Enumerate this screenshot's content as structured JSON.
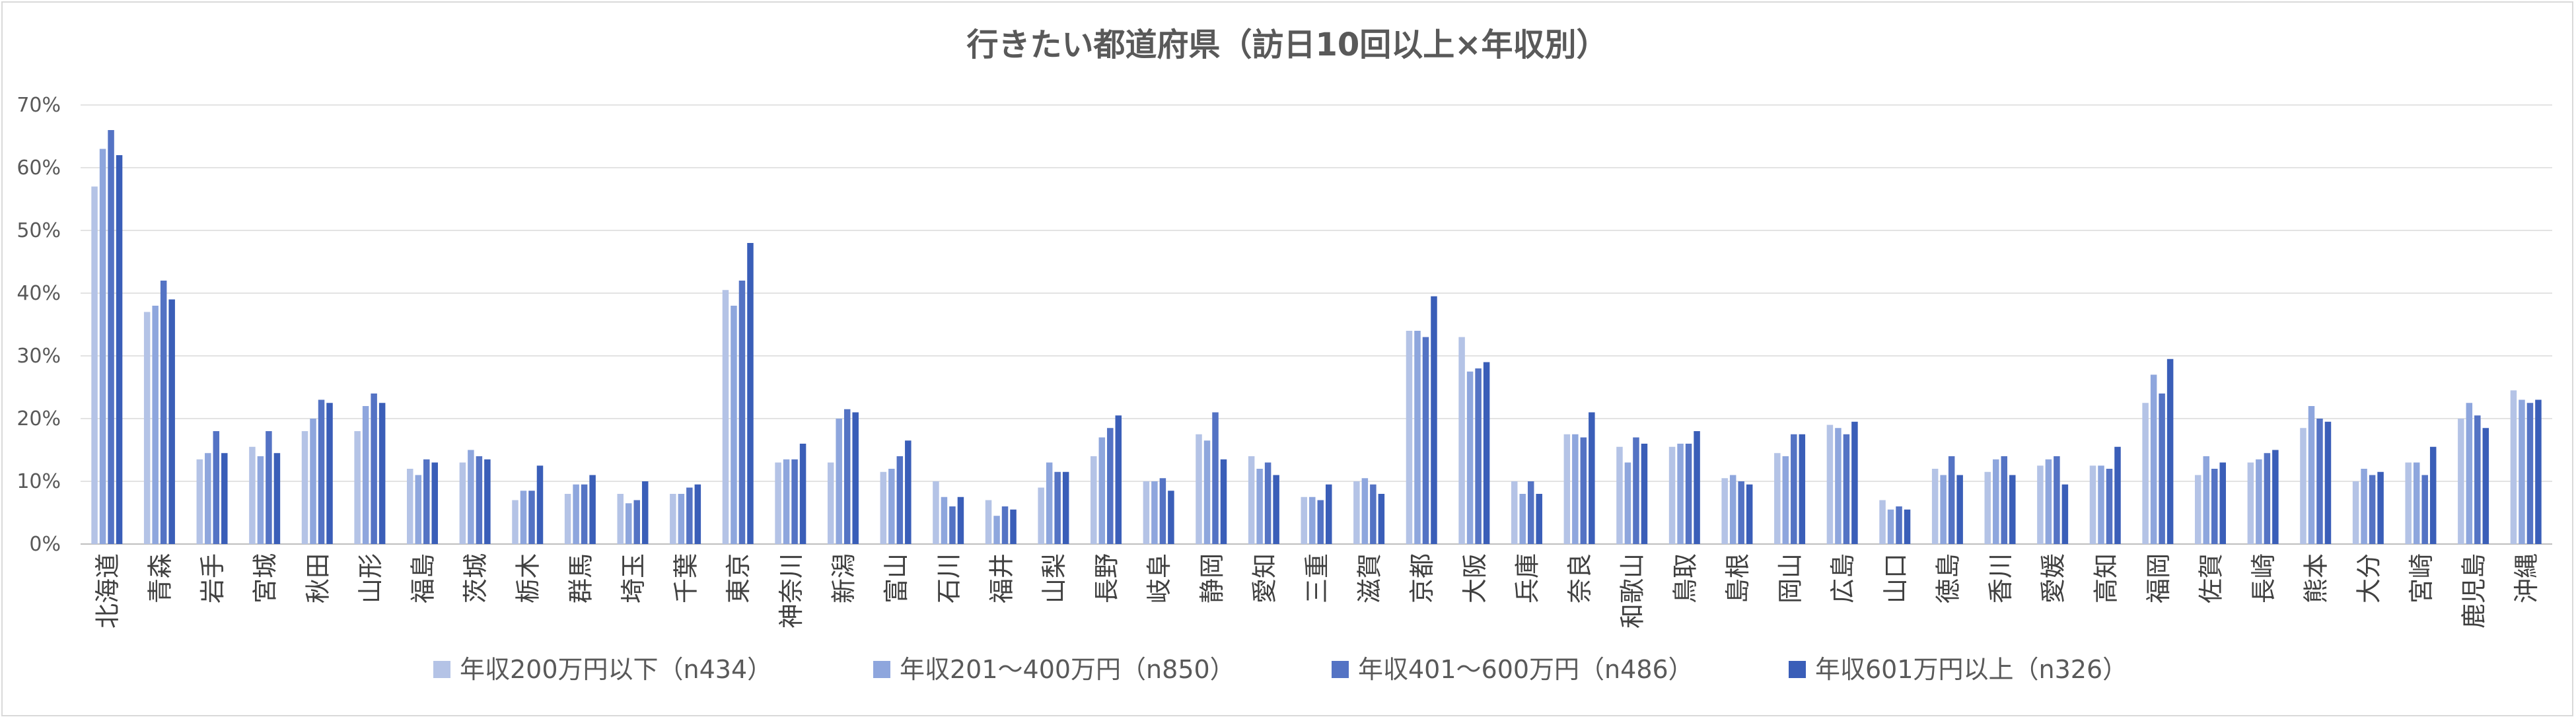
{
  "chart_data": {
    "type": "bar",
    "title": "行きたい都道府県（訪日10回以上×年収別）",
    "xlabel": "",
    "ylabel": "",
    "ylim": [
      0,
      70
    ],
    "y_ticks": [
      "0%",
      "10%",
      "20%",
      "30%",
      "40%",
      "50%",
      "60%",
      "70%"
    ],
    "grid": true,
    "legend_position": "bottom",
    "categories": [
      "北海道",
      "青森",
      "岩手",
      "宮城",
      "秋田",
      "山形",
      "福島",
      "茨城",
      "栃木",
      "群馬",
      "埼玉",
      "千葉",
      "東京",
      "神奈川",
      "新潟",
      "富山",
      "石川",
      "福井",
      "山梨",
      "長野",
      "岐阜",
      "静岡",
      "愛知",
      "三重",
      "滋賀",
      "京都",
      "大阪",
      "兵庫",
      "奈良",
      "和歌山",
      "鳥取",
      "島根",
      "岡山",
      "広島",
      "山口",
      "徳島",
      "香川",
      "愛媛",
      "高知",
      "福岡",
      "佐賀",
      "長崎",
      "熊本",
      "大分",
      "宮崎",
      "鹿児島",
      "沖縄"
    ],
    "series": [
      {
        "name": "年収200万円以下（n434）",
        "color": "#b4c3e6",
        "values": [
          57,
          37,
          13.5,
          15.5,
          18,
          18,
          12,
          13,
          7,
          8,
          8,
          8,
          40.5,
          13,
          13,
          11.5,
          10,
          7,
          9,
          14,
          10,
          17.5,
          14,
          7.5,
          10,
          34,
          33,
          10,
          17.5,
          15.5,
          15.5,
          10.5,
          14.5,
          19,
          7,
          12,
          11.5,
          12.5,
          12.5,
          22.5,
          11,
          13,
          18.5,
          10,
          13,
          20,
          24.5
        ]
      },
      {
        "name": "年収201～400万円（n850）",
        "color": "#8ea6dd",
        "values": [
          63,
          38,
          14.5,
          14,
          20,
          22,
          11,
          15,
          8.5,
          9.5,
          6.5,
          8,
          38,
          13.5,
          20,
          12,
          7.5,
          4.5,
          13,
          17,
          10,
          16.5,
          12,
          7.5,
          10.5,
          34,
          27.5,
          8,
          17.5,
          13,
          16,
          11,
          14,
          18.5,
          5.5,
          11,
          13.5,
          13.5,
          12.5,
          27,
          14,
          13.5,
          22,
          12,
          13,
          22.5,
          23
        ]
      },
      {
        "name": "年収401～600万円（n486）",
        "color": "#5473c4",
        "values": [
          66,
          42,
          18,
          18,
          23,
          24,
          13.5,
          14,
          8.5,
          9.5,
          7,
          9,
          42,
          13.5,
          21.5,
          14,
          6,
          6,
          11.5,
          18.5,
          10.5,
          21,
          13,
          7,
          9.5,
          33,
          28,
          10,
          17,
          17,
          16,
          10,
          17.5,
          17.5,
          6,
          14,
          14,
          14,
          12,
          24,
          12,
          14.5,
          20,
          11,
          11,
          20.5,
          22.5
        ]
      },
      {
        "name": "年収601万円以上（n326）",
        "color": "#3a5eb8",
        "values": [
          62,
          39,
          14.5,
          14.5,
          22.5,
          22.5,
          13,
          13.5,
          12.5,
          11,
          10,
          9.5,
          48,
          16,
          21,
          16.5,
          7.5,
          5.5,
          11.5,
          20.5,
          8.5,
          13.5,
          11,
          9.5,
          8,
          39.5,
          29,
          8,
          21,
          16,
          18,
          9.5,
          17.5,
          19.5,
          5.5,
          11,
          11,
          9.5,
          15.5,
          29.5,
          13,
          15,
          19.5,
          11.5,
          15.5,
          18.5,
          23
        ]
      }
    ]
  }
}
